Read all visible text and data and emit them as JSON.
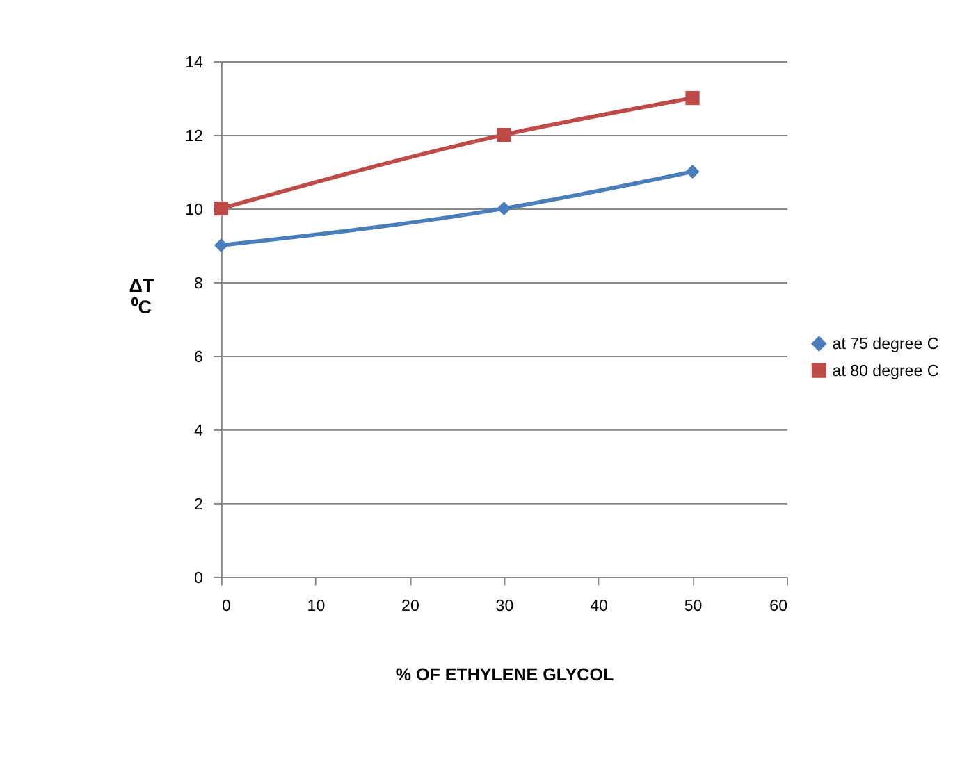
{
  "chart_data": {
    "type": "line",
    "xlabel": "% OF ETHYLENE GLYCOL",
    "ylabel": "ΔT ⁰C",
    "x": [
      0,
      30,
      50
    ],
    "series": [
      {
        "name": "at 75 degree C",
        "color": "#4a7ebb",
        "values": [
          9,
          10,
          11
        ],
        "marker": "diamond"
      },
      {
        "name": "at 80 degree C",
        "color": "#be4b48",
        "values": [
          10,
          12,
          13
        ],
        "marker": "square"
      }
    ],
    "xlim": [
      0,
      60
    ],
    "xticks": [
      0,
      10,
      20,
      30,
      40,
      50,
      60
    ],
    "ylim": [
      0,
      14
    ],
    "yticks": [
      0,
      2,
      4,
      6,
      8,
      10,
      12,
      14
    ],
    "grid": "y",
    "legend": "right",
    "line_style": "solid"
  }
}
